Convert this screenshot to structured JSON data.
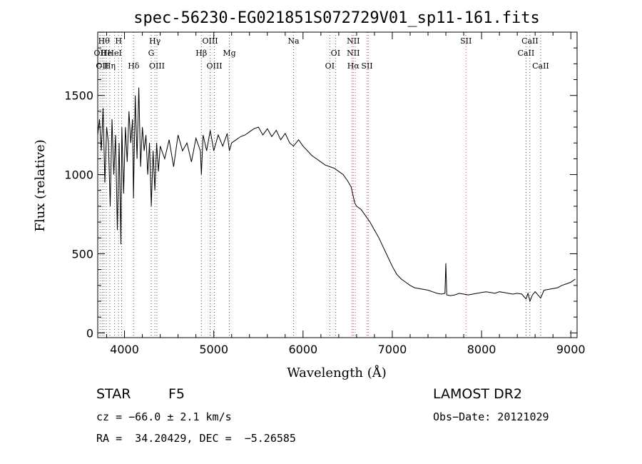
{
  "chart_data": {
    "type": "line",
    "title": "spec-56230-EG021851S072729V01_sp11-161.fits",
    "xlabel": "Wavelength (Å)",
    "ylabel": "Flux (relative)",
    "xlim": [
      3700,
      9070
    ],
    "ylim": [
      -30,
      1900
    ],
    "xticks": [
      4000,
      5000,
      6000,
      7000,
      8000,
      9000
    ],
    "yticks": [
      0,
      500,
      1000,
      1500
    ],
    "grid": false,
    "series": [
      {
        "color": "#000000",
        "points": [
          [
            3700,
            1250
          ],
          [
            3720,
            1350
          ],
          [
            3740,
            1150
          ],
          [
            3760,
            1420
          ],
          [
            3780,
            950
          ],
          [
            3800,
            1300
          ],
          [
            3820,
            1200
          ],
          [
            3840,
            800
          ],
          [
            3860,
            1350
          ],
          [
            3880,
            1000
          ],
          [
            3900,
            1250
          ],
          [
            3920,
            650
          ],
          [
            3940,
            1200
          ],
          [
            3960,
            560
          ],
          [
            3970,
            1300
          ],
          [
            3990,
            880
          ],
          [
            4010,
            1300
          ],
          [
            4030,
            1080
          ],
          [
            4050,
            1400
          ],
          [
            4070,
            1200
          ],
          [
            4090,
            1350
          ],
          [
            4100,
            850
          ],
          [
            4120,
            1500
          ],
          [
            4140,
            1100
          ],
          [
            4160,
            1550
          ],
          [
            4180,
            1050
          ],
          [
            4200,
            1300
          ],
          [
            4220,
            1150
          ],
          [
            4240,
            1250
          ],
          [
            4260,
            1000
          ],
          [
            4280,
            1200
          ],
          [
            4300,
            800
          ],
          [
            4320,
            1150
          ],
          [
            4340,
            900
          ],
          [
            4360,
            1200
          ],
          [
            4380,
            1020
          ],
          [
            4400,
            1180
          ],
          [
            4450,
            1100
          ],
          [
            4500,
            1220
          ],
          [
            4550,
            1050
          ],
          [
            4600,
            1250
          ],
          [
            4650,
            1150
          ],
          [
            4700,
            1200
          ],
          [
            4750,
            1080
          ],
          [
            4800,
            1230
          ],
          [
            4850,
            1150
          ],
          [
            4861,
            1000
          ],
          [
            4880,
            1250
          ],
          [
            4920,
            1150
          ],
          [
            4960,
            1280
          ],
          [
            5000,
            1150
          ],
          [
            5050,
            1250
          ],
          [
            5100,
            1180
          ],
          [
            5150,
            1260
          ],
          [
            5175,
            1150
          ],
          [
            5200,
            1200
          ],
          [
            5250,
            1220
          ],
          [
            5300,
            1240
          ],
          [
            5350,
            1250
          ],
          [
            5400,
            1270
          ],
          [
            5450,
            1290
          ],
          [
            5500,
            1300
          ],
          [
            5550,
            1250
          ],
          [
            5600,
            1290
          ],
          [
            5650,
            1240
          ],
          [
            5700,
            1280
          ],
          [
            5750,
            1220
          ],
          [
            5800,
            1260
          ],
          [
            5850,
            1200
          ],
          [
            5893,
            1180
          ],
          [
            5950,
            1220
          ],
          [
            6000,
            1180
          ],
          [
            6050,
            1150
          ],
          [
            6100,
            1120
          ],
          [
            6150,
            1100
          ],
          [
            6200,
            1080
          ],
          [
            6250,
            1060
          ],
          [
            6300,
            1050
          ],
          [
            6350,
            1040
          ],
          [
            6400,
            1020
          ],
          [
            6450,
            1000
          ],
          [
            6500,
            960
          ],
          [
            6540,
            920
          ],
          [
            6563,
            860
          ],
          [
            6580,
            820
          ],
          [
            6600,
            800
          ],
          [
            6650,
            780
          ],
          [
            6700,
            740
          ],
          [
            6750,
            700
          ],
          [
            6800,
            650
          ],
          [
            6850,
            600
          ],
          [
            6900,
            540
          ],
          [
            6950,
            480
          ],
          [
            7000,
            420
          ],
          [
            7050,
            370
          ],
          [
            7100,
            340
          ],
          [
            7150,
            320
          ],
          [
            7200,
            300
          ],
          [
            7250,
            285
          ],
          [
            7300,
            280
          ],
          [
            7350,
            275
          ],
          [
            7400,
            270
          ],
          [
            7450,
            260
          ],
          [
            7500,
            250
          ],
          [
            7550,
            245
          ],
          [
            7590,
            250
          ],
          [
            7600,
            440
          ],
          [
            7610,
            240
          ],
          [
            7650,
            235
          ],
          [
            7700,
            240
          ],
          [
            7750,
            250
          ],
          [
            7800,
            245
          ],
          [
            7850,
            240
          ],
          [
            7900,
            245
          ],
          [
            7950,
            250
          ],
          [
            8000,
            255
          ],
          [
            8050,
            260
          ],
          [
            8100,
            255
          ],
          [
            8150,
            250
          ],
          [
            8200,
            260
          ],
          [
            8250,
            255
          ],
          [
            8300,
            250
          ],
          [
            8350,
            245
          ],
          [
            8400,
            250
          ],
          [
            8450,
            245
          ],
          [
            8498,
            215
          ],
          [
            8520,
            250
          ],
          [
            8542,
            200
          ],
          [
            8570,
            240
          ],
          [
            8600,
            260
          ],
          [
            8662,
            220
          ],
          [
            8700,
            270
          ],
          [
            8750,
            275
          ],
          [
            8800,
            280
          ],
          [
            8850,
            285
          ],
          [
            8900,
            300
          ],
          [
            8950,
            310
          ],
          [
            9000,
            320
          ],
          [
            9050,
            340
          ]
        ]
      }
    ],
    "emission_lines": [
      {
        "wl": 6563,
        "color": "#c8464b",
        "labels": [
          {
            "text": "NII",
            "row": 0
          },
          {
            "text": "NII",
            "row": 1
          },
          {
            "text": "Hα",
            "row": 2
          }
        ]
      },
      {
        "wl": 6584,
        "color": "#c8464b",
        "labels": []
      },
      {
        "wl": 6548,
        "color": "#c8464b",
        "labels": []
      },
      {
        "wl": 6717,
        "color": "#c8464b",
        "labels": [
          {
            "text": "SII",
            "row": 2
          }
        ]
      },
      {
        "wl": 6731,
        "color": "#c8464b",
        "labels": []
      },
      {
        "wl": 7825,
        "color": "#c8464b",
        "labels": [
          {
            "text": "SII",
            "row": 0
          }
        ]
      }
    ],
    "absorption_lines": [
      {
        "wl": 3727,
        "labels": [
          {
            "text": "OII",
            "row": 1
          }
        ]
      },
      {
        "wl": 3750,
        "labels": [
          {
            "text": "OII",
            "row": 2
          }
        ]
      },
      {
        "wl": 3770,
        "labels": [
          {
            "text": "Hθ",
            "row": 0
          }
        ]
      },
      {
        "wl": 3797,
        "labels": [
          {
            "text": "He",
            "row": 1
          }
        ]
      },
      {
        "wl": 3835,
        "labels": [
          {
            "text": "Hη",
            "row": 2
          }
        ]
      },
      {
        "wl": 3889,
        "labels": [
          {
            "text": "HeI",
            "row": 1
          }
        ]
      },
      {
        "wl": 3933,
        "labels": [
          {
            "text": "H",
            "row": 0
          }
        ]
      },
      {
        "wl": 3968,
        "labels": []
      },
      {
        "wl": 4102,
        "labels": [
          {
            "text": "Hδ",
            "row": 2
          }
        ]
      },
      {
        "wl": 4300,
        "labels": [
          {
            "text": "G",
            "row": 1
          }
        ]
      },
      {
        "wl": 4340,
        "labels": [
          {
            "text": "Hγ",
            "row": 0
          }
        ]
      },
      {
        "wl": 4363,
        "labels": [
          {
            "text": "OIII",
            "row": 2
          }
        ]
      },
      {
        "wl": 4861,
        "labels": [
          {
            "text": "Hβ",
            "row": 1
          }
        ]
      },
      {
        "wl": 4959,
        "labels": [
          {
            "text": "OIII",
            "row": 0
          }
        ]
      },
      {
        "wl": 5007,
        "labels": [
          {
            "text": "OIII",
            "row": 2
          }
        ]
      },
      {
        "wl": 5175,
        "labels": [
          {
            "text": "Mg",
            "row": 1
          }
        ]
      },
      {
        "wl": 5893,
        "labels": [
          {
            "text": "Na",
            "row": 0
          }
        ]
      },
      {
        "wl": 6300,
        "labels": [
          {
            "text": "OI",
            "row": 2
          }
        ]
      },
      {
        "wl": 6364,
        "labels": [
          {
            "text": "OI",
            "row": 1
          }
        ]
      },
      {
        "wl": 8498,
        "labels": [
          {
            "text": "CaII",
            "row": 1
          }
        ]
      },
      {
        "wl": 8542,
        "labels": [
          {
            "text": "CaII",
            "row": 0
          }
        ]
      },
      {
        "wl": 8662,
        "labels": [
          {
            "text": "CaII",
            "row": 2
          }
        ]
      }
    ]
  },
  "info": {
    "class_label": "STAR",
    "subclass": "F5",
    "survey": "LAMOST DR2",
    "cz": "cz = −66.0 ± 2.1 km/s",
    "obs_date": "Obs−Date: 20121029",
    "coords": "RA =  34.20429, DEC =  −5.26585"
  }
}
